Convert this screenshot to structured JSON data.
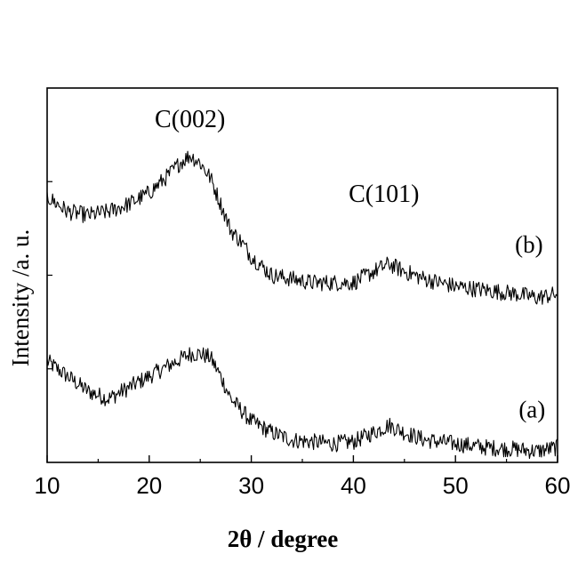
{
  "chart_data": {
    "type": "line",
    "title": "",
    "xlabel": "2θ / degree",
    "ylabel": "Intensity /a. u.",
    "xlim": [
      10,
      60
    ],
    "ylim": [
      0,
      1
    ],
    "x_ticks": [
      10,
      20,
      30,
      40,
      50,
      60
    ],
    "y_ticks_labeled": false,
    "grid": false,
    "annotations": [
      {
        "text": "C(002)",
        "x": 24,
        "y": 0.82
      },
      {
        "text": "C(101)",
        "x": 43,
        "y": 0.62
      }
    ],
    "series": [
      {
        "name": "(a)",
        "label": "(a)",
        "label_x": 57.5,
        "label_y": 0.12,
        "x": [
          10,
          12,
          14,
          16,
          18,
          20,
          22,
          24,
          25,
          26,
          27,
          28,
          30,
          32,
          34,
          36,
          38,
          40,
          42,
          43.5,
          45,
          47,
          50,
          53,
          56,
          58,
          60
        ],
        "values": [
          0.27,
          0.23,
          0.19,
          0.17,
          0.2,
          0.23,
          0.26,
          0.29,
          0.29,
          0.28,
          0.23,
          0.17,
          0.11,
          0.08,
          0.06,
          0.055,
          0.05,
          0.055,
          0.08,
          0.1,
          0.08,
          0.06,
          0.05,
          0.04,
          0.035,
          0.03,
          0.04
        ]
      },
      {
        "name": "(b)",
        "label": "(b)",
        "label_x": 57.2,
        "label_y": 0.56,
        "x": [
          10,
          12,
          14,
          16,
          18,
          20,
          22,
          23,
          24,
          25,
          26,
          27,
          28,
          29,
          30,
          32,
          34,
          36,
          38,
          40,
          42,
          43.5,
          45,
          47,
          50,
          53,
          56,
          58,
          60
        ],
        "values": [
          0.71,
          0.67,
          0.66,
          0.67,
          0.69,
          0.72,
          0.77,
          0.8,
          0.82,
          0.8,
          0.76,
          0.69,
          0.62,
          0.59,
          0.55,
          0.5,
          0.49,
          0.48,
          0.48,
          0.48,
          0.51,
          0.53,
          0.51,
          0.49,
          0.47,
          0.46,
          0.45,
          0.44,
          0.45
        ]
      }
    ]
  }
}
